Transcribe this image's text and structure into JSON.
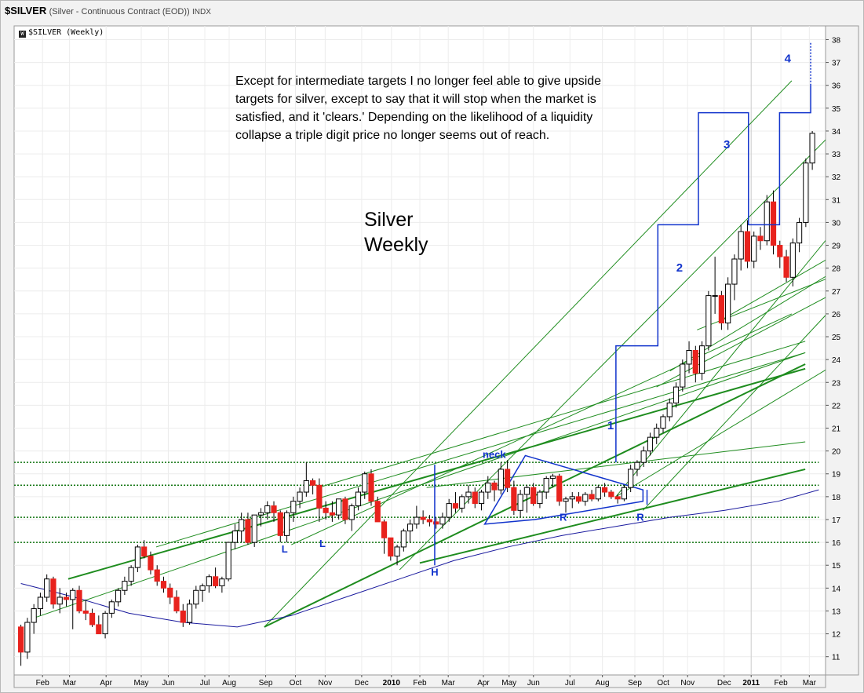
{
  "header": {
    "symbol": "$SILVER",
    "description": "(Silver - Continuous Contract (EOD))",
    "exchange": "INDX"
  },
  "legend": {
    "label": "$SILVER (Weekly)"
  },
  "annotations": {
    "note": "Except for intermediate targets I no longer feel able to give upside targets for silver, except to say that it will stop when the market is satisfied, and it 'clears.' Depending on the likelihood of a liquidity collapse a triple digit price no longer seems out of reach.",
    "title_line1": "Silver",
    "title_line2": "Weekly",
    "labels": [
      {
        "text": "neck",
        "x": 35,
        "y": 19.7
      },
      {
        "text": "L",
        "x": 19.5,
        "y": 15.55
      },
      {
        "text": "L",
        "x": 22.3,
        "y": 15.8
      },
      {
        "text": "H",
        "x": 30.6,
        "y": 14.55
      },
      {
        "text": "R",
        "x": 40.1,
        "y": 16.95
      },
      {
        "text": "R",
        "x": 45.8,
        "y": 16.95
      },
      {
        "text": "1",
        "x": 43.6,
        "y": 20.95
      },
      {
        "text": "2",
        "x": 48.7,
        "y": 27.85
      },
      {
        "text": "3",
        "x": 52.2,
        "y": 33.25
      },
      {
        "text": "4",
        "x": 56.7,
        "y": 37.0
      }
    ]
  },
  "colors": {
    "up": "#ffffff",
    "down": "#e8221d",
    "ma": "#1a1a9e",
    "trend": "#1e8c1e",
    "annot": "#1133cc",
    "dotted": "#127512"
  },
  "chart_data": {
    "type": "candlestick",
    "title": "$SILVER (Weekly)",
    "ylim": [
      10.2,
      38.6
    ],
    "yticks": [
      11,
      12,
      13,
      14,
      15,
      16,
      17,
      18,
      19,
      20,
      21,
      22,
      23,
      24,
      25,
      26,
      27,
      28,
      29,
      30,
      31,
      32,
      33,
      34,
      35,
      36,
      37,
      38
    ],
    "x_ticks": [
      {
        "label": "Feb",
        "x": 1.6
      },
      {
        "label": "Mar",
        "x": 3.6
      },
      {
        "label": "Apr",
        "x": 6.3
      },
      {
        "label": "May",
        "x": 8.9
      },
      {
        "label": "Jun",
        "x": 10.9
      },
      {
        "label": "Jul",
        "x": 13.6
      },
      {
        "label": "Aug",
        "x": 15.4
      },
      {
        "label": "Sep",
        "x": 18.1
      },
      {
        "label": "Oct",
        "x": 20.3
      },
      {
        "label": "Nov",
        "x": 22.5
      },
      {
        "label": "Dec",
        "x": 25.2
      },
      {
        "label": "2010",
        "x": 27.4
      },
      {
        "label": "Feb",
        "x": 29.5
      },
      {
        "label": "Mar",
        "x": 31.6
      },
      {
        "label": "Apr",
        "x": 34.2
      },
      {
        "label": "May",
        "x": 36.1
      },
      {
        "label": "Jun",
        "x": 37.9
      },
      {
        "label": "Jul",
        "x": 40.6
      },
      {
        "label": "Aug",
        "x": 43.0
      },
      {
        "label": "Sep",
        "x": 45.4
      },
      {
        "label": "Oct",
        "x": 47.5
      },
      {
        "label": "Nov",
        "x": 49.3
      },
      {
        "label": "Dec",
        "x": 52.0
      },
      {
        "label": "2011",
        "x": 54.0
      },
      {
        "label": "Feb",
        "x": 56.2
      },
      {
        "label": "Mar",
        "x": 58.3
      }
    ],
    "x_range": [
      -0.5,
      59.5
    ],
    "candles": [
      [
        12.3,
        12.4,
        10.6,
        11.2
      ],
      [
        11.2,
        12.7,
        10.9,
        12.5
      ],
      [
        12.5,
        13.3,
        12.0,
        13.1
      ],
      [
        13.1,
        13.8,
        12.8,
        13.6
      ],
      [
        13.6,
        14.6,
        13.4,
        14.4
      ],
      [
        14.4,
        14.5,
        13.1,
        13.3
      ],
      [
        13.3,
        14.0,
        12.9,
        13.6
      ],
      [
        13.6,
        13.8,
        13.2,
        13.5
      ],
      [
        13.5,
        14.0,
        12.2,
        13.9
      ],
      [
        13.9,
        14.1,
        12.9,
        13.0
      ],
      [
        13.0,
        13.5,
        12.6,
        12.9
      ],
      [
        12.9,
        13.1,
        12.3,
        12.4
      ],
      [
        12.4,
        12.8,
        12.0,
        12.0
      ],
      [
        12.0,
        13.0,
        11.8,
        12.9
      ],
      [
        12.9,
        13.5,
        12.7,
        13.4
      ],
      [
        13.4,
        14.0,
        13.2,
        13.9
      ],
      [
        13.9,
        14.5,
        13.7,
        14.3
      ],
      [
        14.3,
        15.0,
        14.1,
        14.9
      ],
      [
        14.9,
        15.9,
        14.7,
        15.8
      ],
      [
        15.8,
        16.1,
        15.3,
        15.4
      ],
      [
        15.4,
        15.6,
        14.6,
        14.8
      ],
      [
        14.8,
        15.0,
        14.1,
        14.3
      ],
      [
        14.3,
        14.5,
        13.8,
        14.0
      ],
      [
        14.0,
        14.2,
        13.3,
        13.6
      ],
      [
        13.6,
        13.9,
        12.9,
        13.0
      ],
      [
        13.0,
        13.3,
        12.3,
        12.5
      ],
      [
        12.5,
        13.5,
        12.4,
        13.3
      ],
      [
        13.3,
        14.1,
        13.1,
        13.9
      ],
      [
        13.9,
        14.2,
        13.4,
        14.1
      ],
      [
        14.1,
        14.6,
        13.8,
        14.5
      ],
      [
        14.5,
        14.9,
        14.0,
        14.1
      ],
      [
        14.1,
        14.5,
        13.8,
        14.4
      ],
      [
        14.4,
        16.0,
        14.3,
        16.0
      ],
      [
        16.0,
        16.8,
        15.7,
        16.5
      ],
      [
        16.5,
        17.3,
        16.0,
        17.0
      ],
      [
        17.0,
        17.3,
        15.9,
        16.0
      ],
      [
        16.0,
        17.2,
        15.8,
        17.2
      ],
      [
        17.2,
        17.5,
        16.7,
        17.3
      ],
      [
        17.3,
        17.8,
        17.0,
        17.6
      ],
      [
        17.6,
        17.8,
        16.9,
        17.3
      ],
      [
        17.3,
        17.4,
        16.0,
        16.3
      ],
      [
        16.3,
        17.4,
        16.0,
        17.3
      ],
      [
        17.3,
        18.0,
        16.9,
        17.8
      ],
      [
        17.8,
        18.4,
        17.5,
        18.2
      ],
      [
        18.2,
        19.5,
        18.0,
        18.7
      ],
      [
        18.7,
        18.8,
        18.1,
        18.5
      ],
      [
        18.5,
        18.8,
        16.9,
        17.5
      ],
      [
        17.5,
        17.8,
        17.0,
        17.3
      ],
      [
        17.3,
        17.8,
        16.9,
        17.2
      ],
      [
        17.2,
        17.9,
        17.0,
        17.9
      ],
      [
        17.9,
        18.0,
        16.8,
        17.0
      ],
      [
        17.0,
        17.7,
        16.5,
        17.6
      ],
      [
        17.6,
        18.4,
        17.4,
        18.2
      ],
      [
        18.2,
        19.1,
        17.9,
        19.0
      ],
      [
        19.0,
        19.2,
        17.6,
        17.8
      ],
      [
        17.8,
        18.0,
        16.9,
        16.9
      ],
      [
        16.9,
        17.0,
        15.5,
        16.2
      ],
      [
        16.2,
        16.2,
        15.2,
        15.4
      ],
      [
        15.4,
        15.9,
        15.0,
        15.8
      ],
      [
        15.8,
        16.6,
        15.6,
        16.5
      ],
      [
        16.5,
        17.0,
        16.0,
        16.8
      ],
      [
        16.8,
        17.6,
        16.6,
        17.1
      ],
      [
        17.1,
        17.4,
        16.8,
        17.0
      ],
      [
        17.0,
        17.2,
        16.7,
        16.9
      ],
      [
        16.9,
        17.1,
        16.6,
        16.8
      ],
      [
        16.8,
        17.3,
        16.6,
        17.1
      ],
      [
        17.1,
        17.9,
        16.9,
        17.7
      ],
      [
        17.7,
        18.2,
        17.3,
        17.5
      ],
      [
        17.5,
        18.1,
        17.3,
        18.0
      ],
      [
        18.0,
        18.5,
        17.7,
        18.2
      ],
      [
        18.2,
        18.4,
        17.5,
        17.7
      ],
      [
        17.7,
        18.3,
        17.4,
        18.2
      ],
      [
        18.2,
        18.9,
        17.9,
        18.6
      ],
      [
        18.6,
        18.7,
        17.8,
        18.3
      ],
      [
        18.3,
        19.5,
        18.1,
        19.2
      ],
      [
        19.2,
        19.6,
        18.2,
        18.4
      ],
      [
        18.4,
        18.7,
        17.2,
        17.4
      ],
      [
        17.4,
        18.3,
        17.1,
        18.1
      ],
      [
        18.1,
        18.5,
        17.3,
        18.4
      ],
      [
        18.4,
        18.6,
        17.6,
        17.7
      ],
      [
        17.7,
        18.3,
        17.5,
        18.2
      ],
      [
        18.2,
        18.9,
        17.9,
        18.8
      ],
      [
        18.8,
        19.0,
        18.4,
        18.9
      ],
      [
        18.9,
        19.0,
        17.6,
        17.8
      ],
      [
        17.8,
        18.0,
        17.3,
        17.9
      ],
      [
        17.9,
        18.2,
        17.5,
        18.0
      ],
      [
        18.0,
        18.2,
        17.7,
        17.8
      ],
      [
        17.8,
        18.2,
        17.6,
        18.1
      ],
      [
        18.1,
        18.3,
        17.8,
        17.9
      ],
      [
        17.9,
        18.5,
        17.8,
        18.4
      ],
      [
        18.4,
        18.6,
        18.0,
        18.2
      ],
      [
        18.2,
        18.3,
        17.9,
        18.0
      ],
      [
        18.0,
        18.1,
        17.7,
        17.9
      ],
      [
        17.9,
        18.5,
        17.8,
        18.4
      ],
      [
        18.4,
        19.4,
        18.2,
        19.2
      ],
      [
        19.2,
        19.6,
        18.9,
        19.5
      ],
      [
        19.5,
        20.2,
        19.3,
        20.0
      ],
      [
        20.0,
        20.8,
        19.8,
        20.6
      ],
      [
        20.6,
        21.2,
        20.3,
        21.0
      ],
      [
        21.0,
        21.6,
        20.8,
        21.5
      ],
      [
        21.5,
        22.3,
        21.3,
        22.1
      ],
      [
        22.1,
        23.0,
        21.9,
        22.8
      ],
      [
        22.8,
        24.0,
        22.6,
        23.8
      ],
      [
        23.8,
        24.8,
        23.4,
        24.4
      ],
      [
        24.4,
        24.6,
        23.0,
        23.4
      ],
      [
        23.4,
        24.8,
        23.1,
        24.6
      ],
      [
        24.6,
        27.0,
        24.4,
        26.8
      ],
      [
        26.8,
        28.5,
        26.0,
        26.8
      ],
      [
        26.8,
        27.0,
        25.3,
        25.6
      ],
      [
        25.6,
        27.6,
        25.3,
        27.3
      ],
      [
        27.3,
        28.6,
        26.6,
        28.4
      ],
      [
        28.4,
        29.9,
        27.9,
        29.6
      ],
      [
        29.6,
        30.1,
        28.0,
        28.3
      ],
      [
        28.3,
        29.6,
        28.0,
        29.4
      ],
      [
        29.4,
        29.8,
        28.8,
        29.2
      ],
      [
        29.2,
        31.2,
        29.0,
        30.9
      ],
      [
        30.9,
        31.4,
        28.6,
        29.0
      ],
      [
        29.0,
        29.2,
        28.0,
        28.5
      ],
      [
        28.5,
        28.8,
        27.4,
        27.6
      ],
      [
        27.6,
        29.3,
        27.2,
        29.1
      ],
      [
        29.1,
        30.2,
        28.7,
        30.0
      ],
      [
        30.0,
        32.8,
        29.8,
        32.6
      ],
      [
        32.6,
        34.0,
        32.3,
        33.9
      ]
    ],
    "moving_average": [
      [
        0,
        14.2
      ],
      [
        4,
        13.6
      ],
      [
        8,
        12.9
      ],
      [
        12,
        12.5
      ],
      [
        16,
        12.3
      ],
      [
        20,
        12.8
      ],
      [
        24,
        13.6
      ],
      [
        28,
        14.4
      ],
      [
        32,
        15.2
      ],
      [
        36,
        15.8
      ],
      [
        40,
        16.3
      ],
      [
        44,
        16.7
      ],
      [
        48,
        17.1
      ],
      [
        52,
        17.4
      ],
      [
        56,
        17.8
      ],
      [
        59,
        18.3
      ]
    ],
    "dotted_levels": [
      19.5,
      18.5,
      17.1,
      16.0
    ],
    "trendlines": [
      {
        "x1": 3.5,
        "y1": 14.4,
        "x2": 58,
        "y2": 23.6,
        "w": 2
      },
      {
        "x1": 18,
        "y1": 12.3,
        "x2": 58,
        "y2": 23.8,
        "w": 2
      },
      {
        "x1": 29.5,
        "y1": 15.1,
        "x2": 58,
        "y2": 19.2,
        "w": 2
      },
      {
        "x1": 1,
        "y1": 12.7,
        "x2": 58,
        "y2": 24.3,
        "w": 1
      },
      {
        "x1": 10,
        "y1": 15.8,
        "x2": 58,
        "y2": 24.3,
        "w": 1
      },
      {
        "x1": 22,
        "y1": 18.4,
        "x2": 58,
        "y2": 24.8,
        "w": 1
      },
      {
        "x1": 30,
        "y1": 18.4,
        "x2": 58,
        "y2": 20.4,
        "w": 1
      },
      {
        "x1": 18,
        "y1": 12.3,
        "x2": 57,
        "y2": 36.2,
        "w": 1
      },
      {
        "x1": 28,
        "y1": 14.8,
        "x2": 65,
        "y2": 36.9,
        "w": 1
      },
      {
        "x1": 20,
        "y1": 15.9,
        "x2": 57,
        "y2": 26.0,
        "w": 1
      },
      {
        "x1": 44,
        "y1": 18.0,
        "x2": 70,
        "y2": 36.8,
        "w": 1
      },
      {
        "x1": 44,
        "y1": 18.0,
        "x2": 70,
        "y2": 27.3,
        "w": 1
      },
      {
        "x1": 46,
        "y1": 17.4,
        "x2": 77,
        "y2": 37.0,
        "w": 1
      },
      {
        "x1": 52,
        "y1": 25.8,
        "x2": 77,
        "y2": 34.3,
        "w": 1
      },
      {
        "x1": 47,
        "y1": 22.8,
        "x2": 77,
        "y2": 32.2,
        "w": 1
      },
      {
        "x1": 48,
        "y1": 23.5,
        "x2": 85,
        "y2": 36.8,
        "w": 1
      },
      {
        "x1": 50,
        "y1": 25.3,
        "x2": 77,
        "y2": 31.6,
        "w": 1
      }
    ],
    "triangle": [
      [
        34.3,
        16.8
      ],
      [
        37.3,
        19.8
      ],
      [
        46.0,
        18.3
      ],
      [
        46.0,
        17.8
      ],
      [
        38.0,
        17.0
      ]
    ],
    "blue_lines": [
      [
        [
          30.6,
          15.0
        ],
        [
          30.6,
          19.4
        ]
      ],
      [
        [
          44,
          19.5
        ],
        [
          44,
          24.6
        ],
        [
          47.1,
          24.6
        ],
        [
          47.1,
          29.9
        ],
        [
          50.1,
          29.9
        ],
        [
          50.1,
          34.8
        ],
        [
          53.8,
          34.8
        ],
        [
          53.8,
          29.9
        ],
        [
          56.1,
          29.9
        ],
        [
          56.1,
          34.8
        ],
        [
          58.4,
          34.8
        ],
        [
          58.4,
          36.0
        ]
      ],
      [
        [
          46.3,
          17.65
        ],
        [
          46.3,
          18.3
        ]
      ]
    ],
    "blue_dashed": [
      [
        58.4,
        36.0
      ],
      [
        58.4,
        37.9
      ]
    ],
    "projection_steps": [
      {
        "from": [
          44,
          19.5
        ],
        "to": [
          47.1,
          24.6
        ]
      },
      {
        "from": [
          47.1,
          24.6
        ],
        "to": [
          50.1,
          29.9
        ]
      },
      {
        "from": [
          50.1,
          29.9
        ],
        "to": [
          53.8,
          34.8
        ]
      },
      {
        "from": [
          53.8,
          34.8
        ],
        "to": [
          56.1,
          37.9
        ]
      }
    ]
  }
}
